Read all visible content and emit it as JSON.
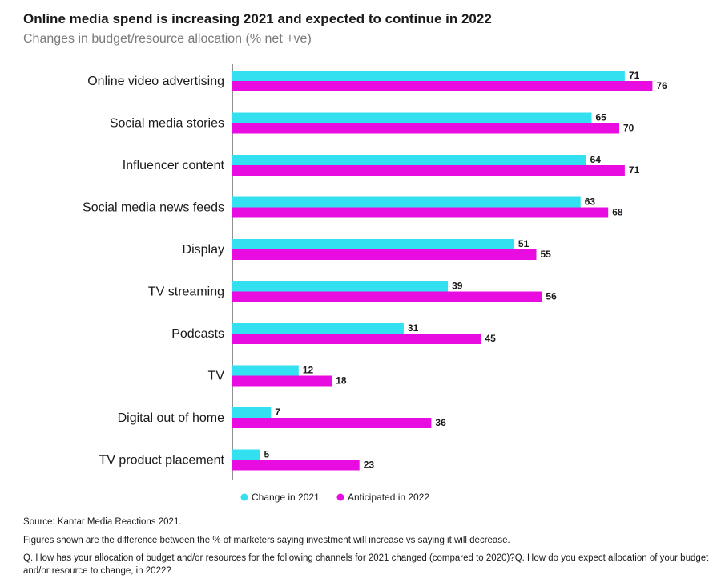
{
  "header": {
    "title": "Online media spend is increasing 2021 and expected to continue in 2022",
    "subtitle": "Changes in budget/resource allocation (% net +ve)"
  },
  "chart_data": {
    "type": "bar",
    "orientation": "horizontal",
    "categories": [
      "Online video advertising",
      "Social media stories",
      "Influencer content",
      "Social media news feeds",
      "Display",
      "TV streaming",
      "Podcasts",
      "TV",
      "Digital out of home",
      "TV product placement"
    ],
    "series": [
      {
        "name": "Change in 2021",
        "color": "#33e0ef",
        "values": [
          71,
          65,
          64,
          63,
          51,
          39,
          31,
          12,
          7,
          5
        ]
      },
      {
        "name": "Anticipated in 2022",
        "color": "#e80ce0",
        "values": [
          76,
          70,
          71,
          68,
          55,
          56,
          45,
          18,
          36,
          23
        ]
      }
    ],
    "xlim": [
      0,
      100
    ],
    "grid": false,
    "legend_position": "bottom",
    "data_labels": true
  },
  "notes": {
    "source": "Source: Kantar Media Reactions 2021.",
    "figures": "Figures shown are the difference between the % of marketers saying investment will increase vs saying it will decrease.",
    "question": "Q. How has your allocation of budget and/or resources for the following channels for 2021 changed (compared to 2020)?Q. How do you expect allocation of your budget and/or resource to change, in 2022?"
  }
}
